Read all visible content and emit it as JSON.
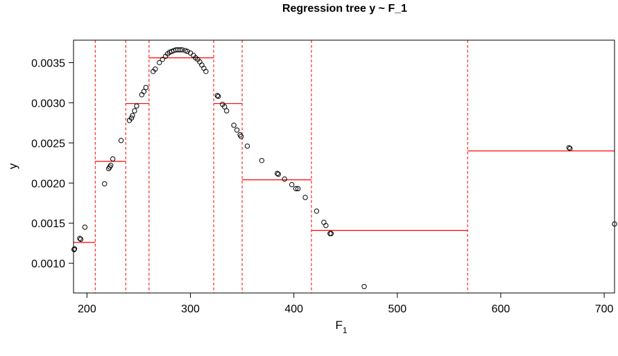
{
  "chart_data": {
    "type": "scatter",
    "title": "Regression tree y ~ F_1",
    "xlabel": "F",
    "xlabel_subscript": "1",
    "ylabel": "y",
    "xlim": [
      187,
      710
    ],
    "ylim": [
      0.00063,
      0.00378
    ],
    "x_ticks": [
      200,
      300,
      400,
      500,
      600,
      700
    ],
    "y_ticks": [
      0.001,
      0.0015,
      0.002,
      0.0025,
      0.003,
      0.0035
    ],
    "y_tick_labels": [
      "0.0010",
      "0.0015",
      "0.0020",
      "0.0025",
      "0.0030",
      "0.0035"
    ],
    "grid": false,
    "colors": {
      "points": "#000000",
      "splits": "#ff0000",
      "means": "#ff0000",
      "frame": "#000000"
    },
    "points": [
      [
        187.5,
        0.00117
      ],
      [
        188,
        0.00118
      ],
      [
        193,
        0.00131
      ],
      [
        194,
        0.0013
      ],
      [
        198,
        0.00145
      ],
      [
        217,
        0.00199
      ],
      [
        221,
        0.00218
      ],
      [
        222,
        0.0022
      ],
      [
        223,
        0.00222
      ],
      [
        225,
        0.0023
      ],
      [
        233,
        0.00253
      ],
      [
        241,
        0.00278
      ],
      [
        243,
        0.00281
      ],
      [
        244,
        0.00284
      ],
      [
        246,
        0.0029
      ],
      [
        248,
        0.00296
      ],
      [
        253,
        0.0031
      ],
      [
        255,
        0.00314
      ],
      [
        257,
        0.00319
      ],
      [
        264,
        0.00339
      ],
      [
        266,
        0.00342
      ],
      [
        270,
        0.0035
      ],
      [
        273,
        0.00354
      ],
      [
        276,
        0.00358
      ],
      [
        278,
        0.00361
      ],
      [
        280,
        0.00363
      ],
      [
        282,
        0.00364
      ],
      [
        284,
        0.00365
      ],
      [
        286,
        0.00366
      ],
      [
        288,
        0.00366
      ],
      [
        290,
        0.00366
      ],
      [
        292,
        0.00366
      ],
      [
        295,
        0.00365
      ],
      [
        297,
        0.00364
      ],
      [
        300,
        0.00362
      ],
      [
        303,
        0.00359
      ],
      [
        305,
        0.00356
      ],
      [
        307,
        0.00354
      ],
      [
        309,
        0.00351
      ],
      [
        311,
        0.00347
      ],
      [
        313,
        0.00343
      ],
      [
        315,
        0.00339
      ],
      [
        326,
        0.00309
      ],
      [
        327,
        0.00308
      ],
      [
        331,
        0.00298
      ],
      [
        333,
        0.00295
      ],
      [
        335,
        0.0029
      ],
      [
        342,
        0.00272
      ],
      [
        345,
        0.00266
      ],
      [
        348,
        0.0026
      ],
      [
        349,
        0.00258
      ],
      [
        355,
        0.00246
      ],
      [
        369,
        0.00228
      ],
      [
        384,
        0.00212
      ],
      [
        385,
        0.00211
      ],
      [
        391,
        0.00205
      ],
      [
        398,
        0.00198
      ],
      [
        402,
        0.00193
      ],
      [
        404,
        0.00193
      ],
      [
        411,
        0.00182
      ],
      [
        422,
        0.00165
      ],
      [
        429,
        0.00151
      ],
      [
        431,
        0.00147
      ],
      [
        435,
        0.00137
      ],
      [
        436,
        0.00137
      ],
      [
        468,
        0.00071
      ],
      [
        666,
        0.00244
      ],
      [
        667,
        0.00243
      ],
      [
        710,
        0.00149
      ]
    ],
    "splits": [
      187,
      208,
      237.5,
      260,
      322.5,
      350,
      417,
      568
    ],
    "segments": [
      {
        "x0": 187,
        "x1": 208,
        "y": 0.00126
      },
      {
        "x0": 208,
        "x1": 237.5,
        "y": 0.00227
      },
      {
        "x0": 237.5,
        "x1": 260,
        "y": 0.00299
      },
      {
        "x0": 260,
        "x1": 322.5,
        "y": 0.00356
      },
      {
        "x0": 322.5,
        "x1": 350,
        "y": 0.00299
      },
      {
        "x0": 350,
        "x1": 417,
        "y": 0.00204
      },
      {
        "x0": 417,
        "x1": 568,
        "y": 0.00141
      },
      {
        "x0": 568,
        "x1": 710,
        "y": 0.0024
      }
    ]
  }
}
